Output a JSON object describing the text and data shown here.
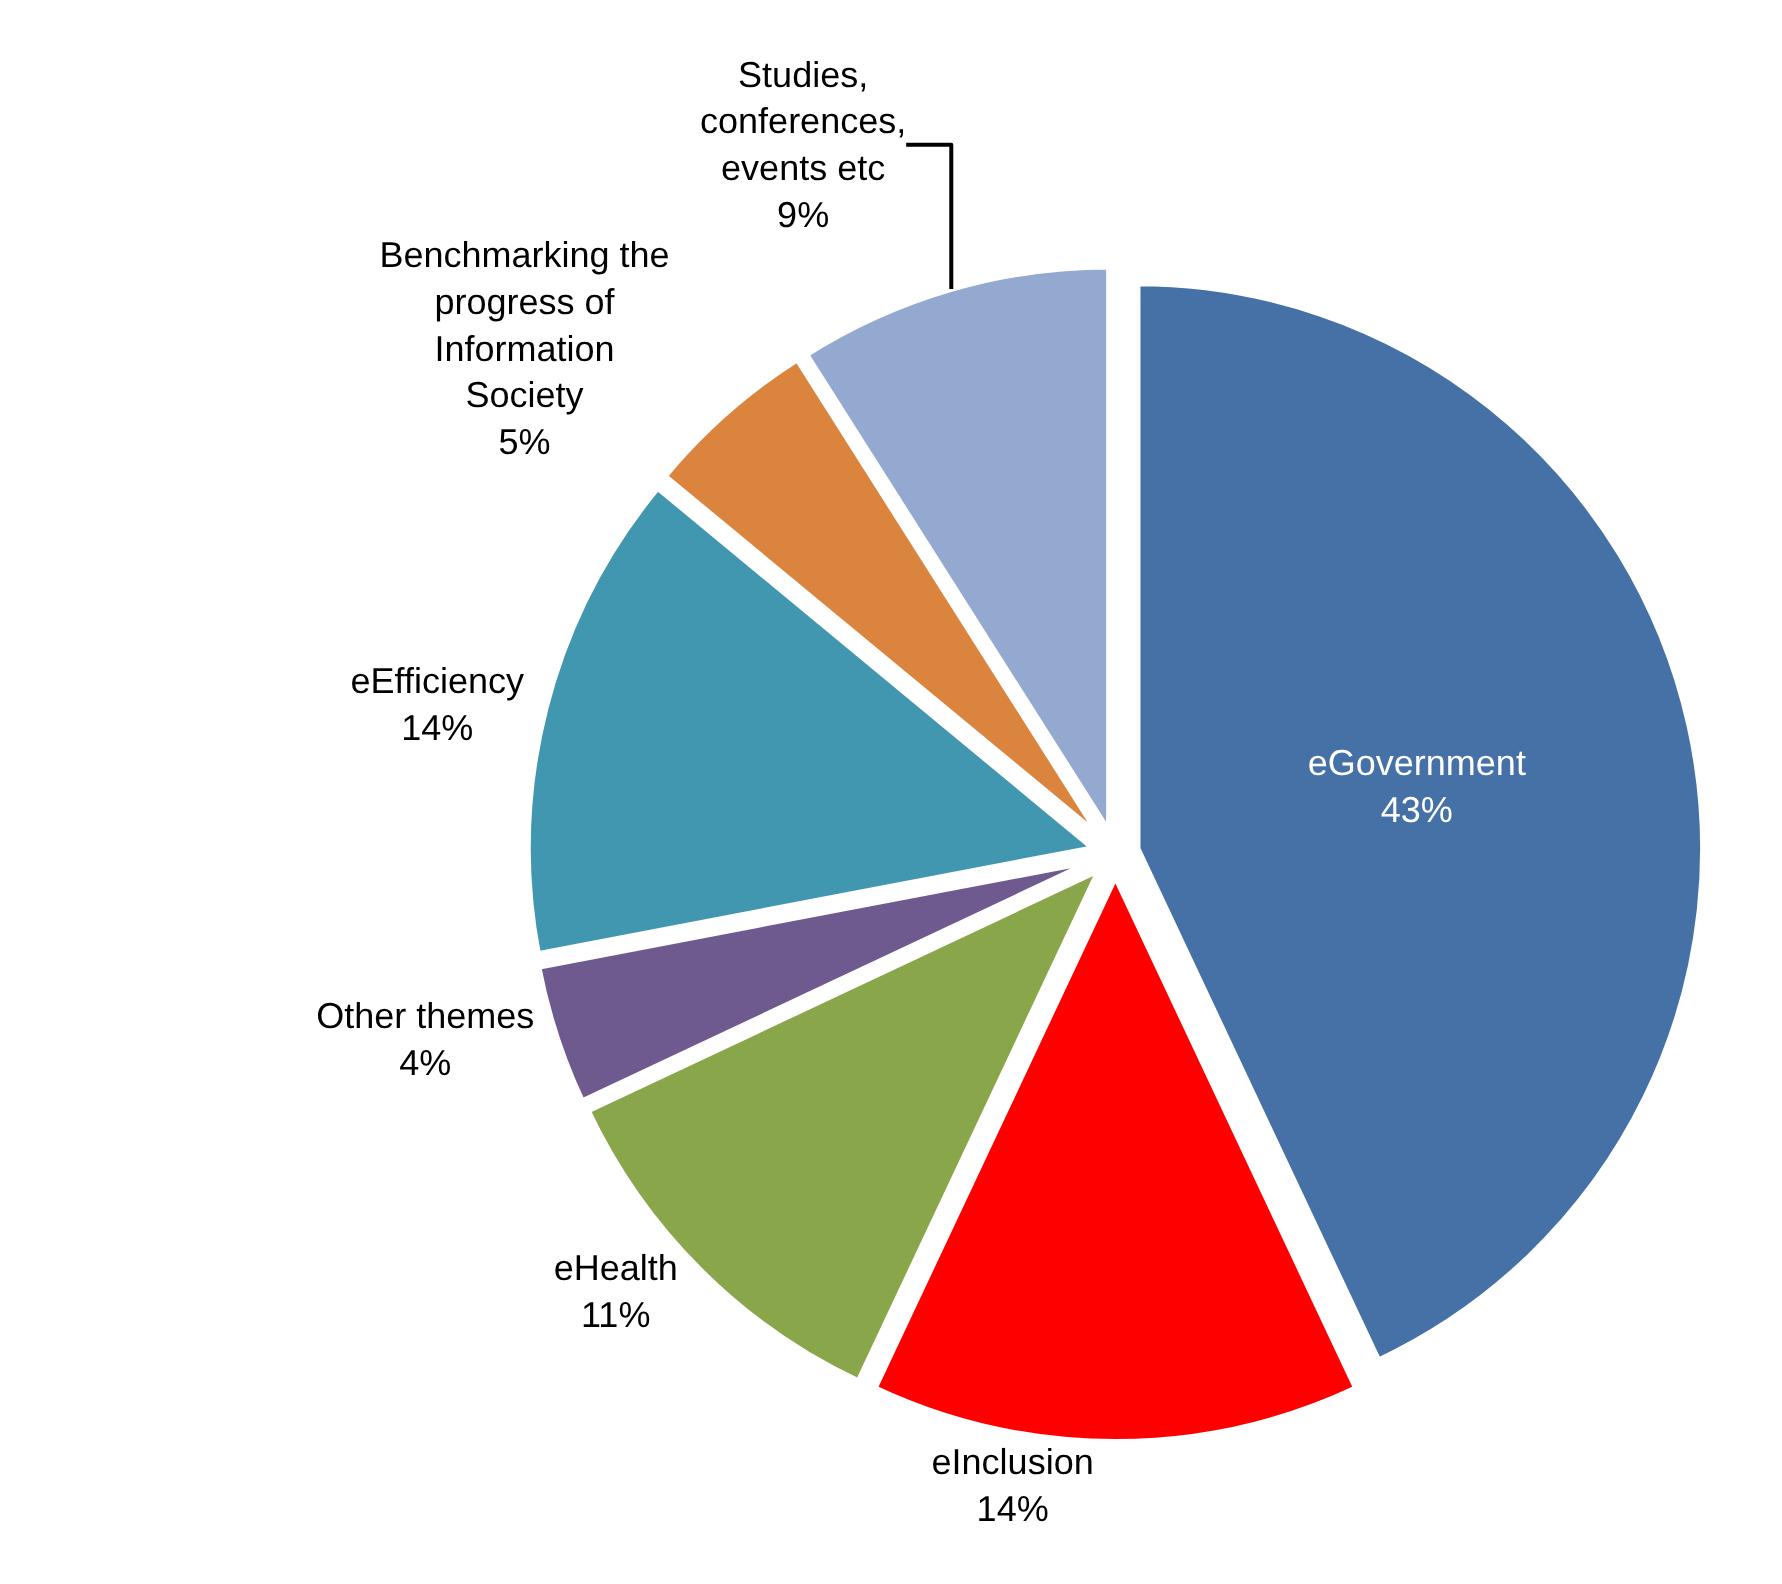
{
  "chart_data": {
    "type": "pie",
    "categories": [
      "eGovernment",
      "eInclusion",
      "eHealth",
      "Other themes",
      "eEfficiency",
      "Benchmarking the progress of Information Society",
      "Studies, conferences, events etc"
    ],
    "values": [
      43,
      14,
      11,
      4,
      14,
      5,
      9
    ],
    "value_labels": [
      "43%",
      "14%",
      "11%",
      "4%",
      "14%",
      "5%",
      "9%"
    ],
    "colors": [
      "#4671a6",
      "#ff0000",
      "#8aa64b",
      "#6f5a90",
      "#4197b0",
      "#db843d",
      "#94a9d0"
    ],
    "legend": false
  }
}
